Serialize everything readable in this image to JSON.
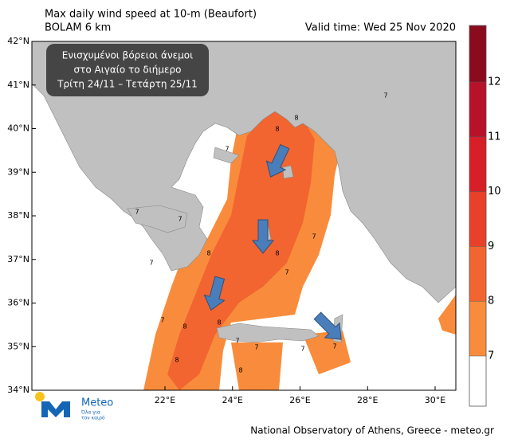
{
  "header": {
    "title": "Max daily wind speed at 10-m (Beaufort)",
    "subtitle": "BOLAM 6 km",
    "valid_time": "Valid time: Wed 25 Nov 2020"
  },
  "annotation": [
    "Ενισχυμένοι βόρειοι άνεμοι",
    "στο Αιγαίο το διήμερο",
    "Τρίτη 24/11 – Τετάρτη 25/11"
  ],
  "map": {
    "lat_ticks": [
      {
        "value": 42,
        "label": "42°N"
      },
      {
        "value": 41,
        "label": "41°N"
      },
      {
        "value": 40,
        "label": "40°N"
      },
      {
        "value": 39,
        "label": "39°N"
      },
      {
        "value": 38,
        "label": "38°N"
      },
      {
        "value": 37,
        "label": "37°N"
      },
      {
        "value": 36,
        "label": "36°N"
      },
      {
        "value": 35,
        "label": "35°N"
      },
      {
        "value": 34,
        "label": "34°N"
      }
    ],
    "lon_ticks": [
      {
        "value": 22,
        "label": "22°E"
      },
      {
        "value": 24,
        "label": "24°E"
      },
      {
        "value": 26,
        "label": "26°E"
      },
      {
        "value": 28,
        "label": "28°E"
      },
      {
        "value": 30,
        "label": "30°E"
      }
    ],
    "contour_labels": [
      "7",
      "8",
      "8",
      "7",
      "7",
      "7",
      "8",
      "7",
      "7",
      "8",
      "8",
      "7",
      "8",
      "7",
      "8",
      "7",
      "7",
      "7",
      "7",
      "8"
    ]
  },
  "colorbar": {
    "levels": [
      7,
      8,
      9,
      10,
      11,
      12
    ],
    "colors": [
      "#ffffff",
      "#f98c3c",
      "#f26530",
      "#e9402a",
      "#d61f26",
      "#b8112a",
      "#8a0a1e"
    ]
  },
  "logo": {
    "name": "Meteo",
    "slogan": [
      "Όλα για",
      "τον καιρό"
    ]
  },
  "footer": "National Observatory of Athens, Greece - meteo.gr"
}
